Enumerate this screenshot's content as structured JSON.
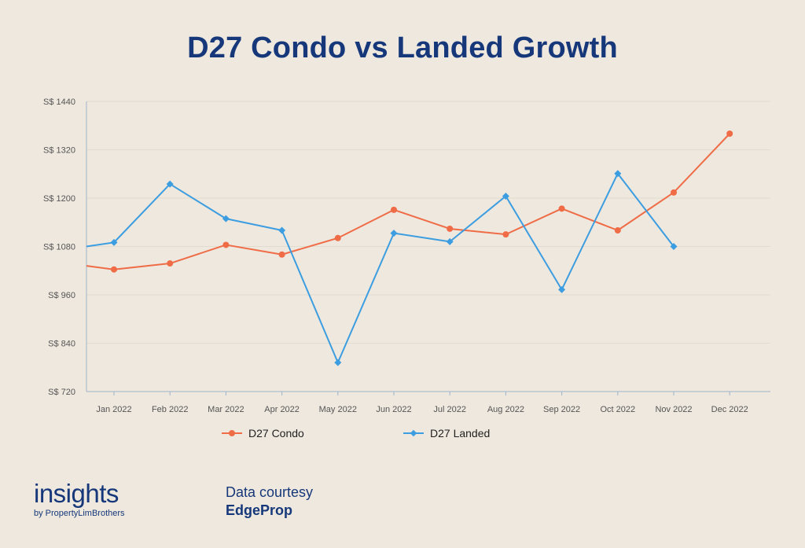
{
  "header": {
    "title": "D27 Condo vs Landed Growth"
  },
  "chart_data": {
    "type": "line",
    "title": "D27 Condo vs Landed Growth",
    "xlabel": "",
    "ylabel": "",
    "categories": [
      "Jan 2022",
      "Feb 2022",
      "Mar 2022",
      "Apr 2022",
      "May 2022",
      "Jun 2022",
      "Jul 2022",
      "Aug 2022",
      "Sep 2022",
      "Oct 2022",
      "Nov 2022",
      "Dec 2022"
    ],
    "ylim": [
      720,
      1440
    ],
    "yticks": [
      720,
      840,
      960,
      1080,
      1200,
      1320,
      1440
    ],
    "ytick_labels": [
      "S$ 720",
      "S$ 840",
      "S$ 960",
      "S$ 1080",
      "S$ 1200",
      "S$ 1320",
      "S$ 1440"
    ],
    "grid": "horizontal",
    "legend_position": "bottom",
    "series": [
      {
        "name": "D27 Condo",
        "color": "#EF6C47",
        "marker": "circle",
        "values": [
          1023,
          1038,
          1084,
          1060,
          1101,
          1171,
          1124,
          1110,
          1174,
          1120,
          1214,
          1360
        ],
        "lead_in": 1032
      },
      {
        "name": "D27 Landed",
        "color": "#3C9DE0",
        "marker": "diamond",
        "values": [
          1090,
          1235,
          1149,
          1120,
          792,
          1113,
          1092,
          1205,
          973,
          1261,
          1080,
          null
        ],
        "lead_in": 1080
      }
    ]
  },
  "footer": {
    "brand_main": "insights",
    "brand_sub": "by PropertyLimBrothers",
    "courtesy_label": "Data courtesy",
    "courtesy_source": "EdgeProp"
  }
}
